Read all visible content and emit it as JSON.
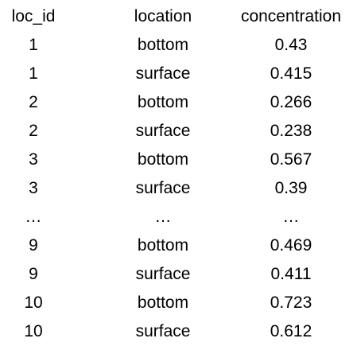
{
  "table": {
    "headers": [
      "loc_id",
      "location",
      "concentration"
    ],
    "rows": [
      [
        "1",
        "bottom",
        "0.43"
      ],
      [
        "1",
        "surface",
        "0.415"
      ],
      [
        "2",
        "bottom",
        "0.266"
      ],
      [
        "2",
        "surface",
        "0.238"
      ],
      [
        "3",
        "bottom",
        "0.567"
      ],
      [
        "3",
        "surface",
        "0.39"
      ],
      [
        "…",
        "…",
        "…"
      ],
      [
        "9",
        "bottom",
        "0.469"
      ],
      [
        "9",
        "surface",
        "0.411"
      ],
      [
        "10",
        "bottom",
        "0.723"
      ],
      [
        "10",
        "surface",
        "0.612"
      ]
    ]
  }
}
